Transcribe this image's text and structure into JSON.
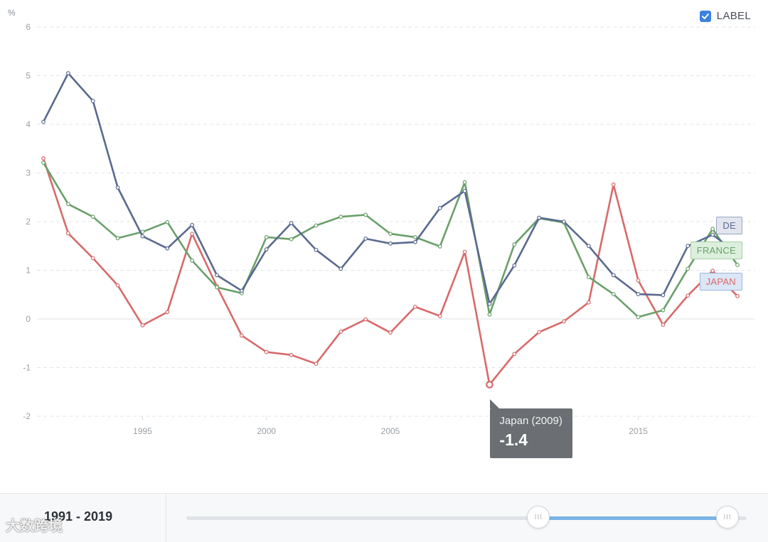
{
  "chart_data": {
    "type": "line",
    "unit_label": "%",
    "ylim": [
      -2,
      6
    ],
    "yticks": [
      -2,
      -1,
      0,
      1,
      2,
      3,
      4,
      5,
      6
    ],
    "xlim": [
      1991,
      2019
    ],
    "xticks": [
      1995,
      2000,
      2005,
      2015
    ],
    "grid": true,
    "legend_toggle": {
      "label": "LABEL",
      "checked": true
    },
    "x": [
      1991,
      1992,
      1993,
      1994,
      1995,
      1996,
      1997,
      1998,
      1999,
      2000,
      2001,
      2002,
      2003,
      2004,
      2005,
      2006,
      2007,
      2008,
      2009,
      2010,
      2011,
      2012,
      2013,
      2014,
      2015,
      2016,
      2017,
      2018,
      2019
    ],
    "series": [
      {
        "name": "DE",
        "color": "#5a6a90",
        "label_bg": "#e2e5ee",
        "label_border": "#9aa6c4",
        "values": [
          4.05,
          5.05,
          4.48,
          2.7,
          1.7,
          1.45,
          1.93,
          0.9,
          0.58,
          1.43,
          1.97,
          1.42,
          1.03,
          1.65,
          1.55,
          1.58,
          2.28,
          2.63,
          0.31,
          1.1,
          2.08,
          2.0,
          1.5,
          0.9,
          0.51,
          0.49,
          1.5,
          1.73,
          1.35
        ]
      },
      {
        "name": "FRANCE",
        "color": "#6aa06a",
        "label_bg": "#dcefdc",
        "label_border": "#a6cfa6",
        "values": [
          3.21,
          2.36,
          2.1,
          1.66,
          1.79,
          1.99,
          1.2,
          0.65,
          0.53,
          1.68,
          1.64,
          1.92,
          2.1,
          2.14,
          1.75,
          1.68,
          1.49,
          2.81,
          0.09,
          1.53,
          2.07,
          1.98,
          0.86,
          0.51,
          0.04,
          0.18,
          1.03,
          1.85,
          1.11
        ]
      },
      {
        "name": "JAPAN",
        "color": "#d86a6a",
        "label_bg": "#dbe6f6",
        "label_border": "#9bb4dc",
        "values": [
          3.3,
          1.76,
          1.25,
          0.69,
          -0.13,
          0.14,
          1.75,
          0.67,
          -0.34,
          -0.68,
          -0.74,
          -0.92,
          -0.26,
          -0.01,
          -0.28,
          0.25,
          0.06,
          1.38,
          -1.35,
          -0.72,
          -0.27,
          -0.05,
          0.34,
          2.76,
          0.79,
          -0.12,
          0.48,
          0.99,
          0.47
        ]
      }
    ],
    "tooltip": {
      "title": "Japan (2009)",
      "value": "-1.4",
      "series": "JAPAN",
      "year": 2009
    }
  },
  "footer": {
    "range_text": "1991 - 2019",
    "handle_grip": "III",
    "slider_range": [
      2009,
      2019
    ]
  },
  "watermark": "大数跨境"
}
